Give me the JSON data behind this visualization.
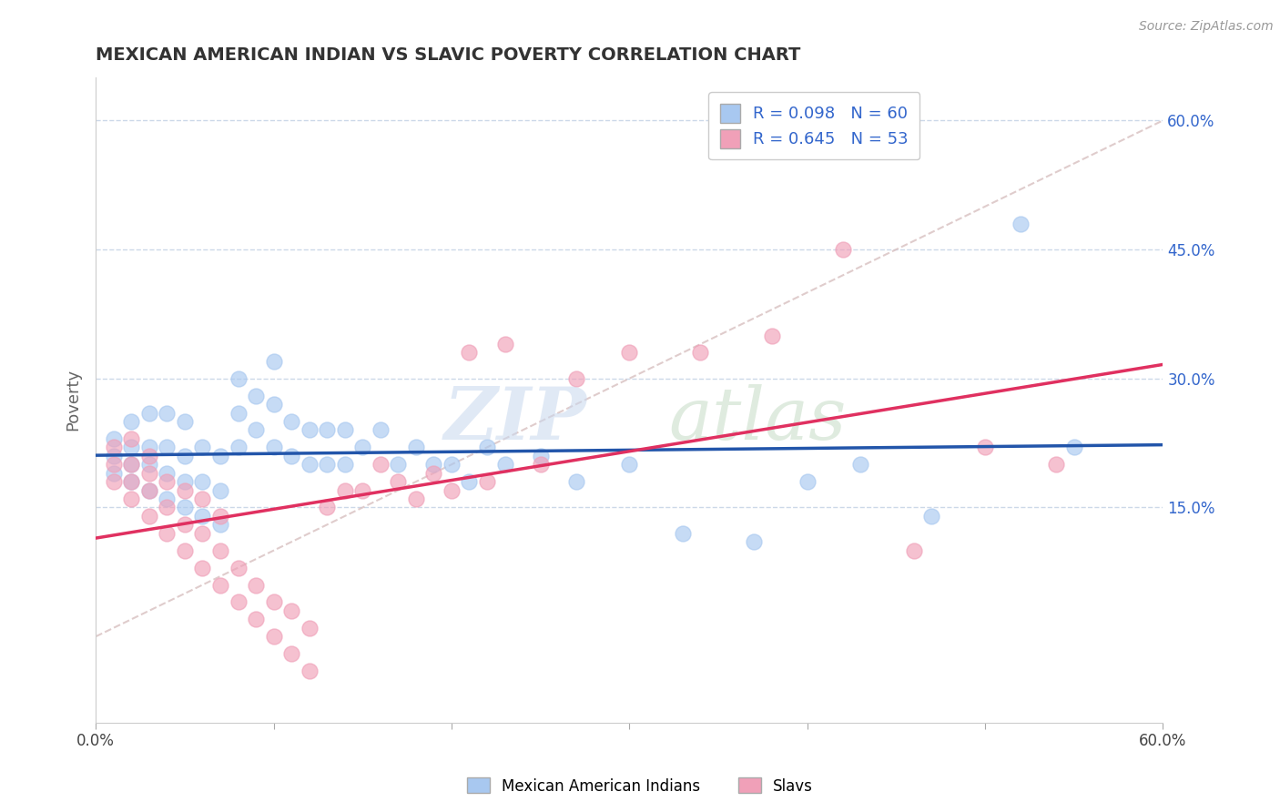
{
  "title": "MEXICAN AMERICAN INDIAN VS SLAVIC POVERTY CORRELATION CHART",
  "source": "Source: ZipAtlas.com",
  "ylabel": "Poverty",
  "xlim": [
    0.0,
    0.6
  ],
  "ylim": [
    -0.1,
    0.65
  ],
  "legend1_label": "R = 0.098   N = 60",
  "legend2_label": "R = 0.645   N = 53",
  "series1_color": "#a8c8f0",
  "series2_color": "#f0a0b8",
  "series1_line_color": "#2255aa",
  "series2_line_color": "#e03060",
  "series1_name": "Mexican American Indians",
  "series2_name": "Slavs",
  "diag_line_color": "#d8c0c0",
  "background_color": "#ffffff",
  "grid_color": "#ccd8e8",
  "scatter1_x": [
    0.01,
    0.01,
    0.01,
    0.02,
    0.02,
    0.02,
    0.02,
    0.03,
    0.03,
    0.03,
    0.03,
    0.04,
    0.04,
    0.04,
    0.04,
    0.05,
    0.05,
    0.05,
    0.05,
    0.06,
    0.06,
    0.06,
    0.07,
    0.07,
    0.07,
    0.08,
    0.08,
    0.08,
    0.09,
    0.09,
    0.1,
    0.1,
    0.1,
    0.11,
    0.11,
    0.12,
    0.12,
    0.13,
    0.13,
    0.14,
    0.14,
    0.15,
    0.16,
    0.17,
    0.18,
    0.19,
    0.2,
    0.21,
    0.22,
    0.23,
    0.25,
    0.27,
    0.3,
    0.33,
    0.37,
    0.4,
    0.43,
    0.47,
    0.52,
    0.55
  ],
  "scatter1_y": [
    0.19,
    0.21,
    0.23,
    0.18,
    0.2,
    0.22,
    0.25,
    0.17,
    0.2,
    0.22,
    0.26,
    0.16,
    0.19,
    0.22,
    0.26,
    0.15,
    0.18,
    0.21,
    0.25,
    0.14,
    0.18,
    0.22,
    0.13,
    0.17,
    0.21,
    0.22,
    0.26,
    0.3,
    0.24,
    0.28,
    0.22,
    0.27,
    0.32,
    0.21,
    0.25,
    0.2,
    0.24,
    0.2,
    0.24,
    0.2,
    0.24,
    0.22,
    0.24,
    0.2,
    0.22,
    0.2,
    0.2,
    0.18,
    0.22,
    0.2,
    0.21,
    0.18,
    0.2,
    0.12,
    0.11,
    0.18,
    0.2,
    0.14,
    0.48,
    0.22
  ],
  "scatter2_x": [
    0.01,
    0.01,
    0.01,
    0.02,
    0.02,
    0.02,
    0.02,
    0.03,
    0.03,
    0.03,
    0.03,
    0.04,
    0.04,
    0.04,
    0.05,
    0.05,
    0.05,
    0.06,
    0.06,
    0.06,
    0.07,
    0.07,
    0.07,
    0.08,
    0.08,
    0.09,
    0.09,
    0.1,
    0.1,
    0.11,
    0.11,
    0.12,
    0.12,
    0.13,
    0.14,
    0.15,
    0.16,
    0.17,
    0.18,
    0.19,
    0.2,
    0.21,
    0.22,
    0.23,
    0.25,
    0.27,
    0.3,
    0.34,
    0.38,
    0.42,
    0.46,
    0.5,
    0.54
  ],
  "scatter2_y": [
    0.18,
    0.2,
    0.22,
    0.16,
    0.18,
    0.2,
    0.23,
    0.14,
    0.17,
    0.19,
    0.21,
    0.12,
    0.15,
    0.18,
    0.1,
    0.13,
    0.17,
    0.08,
    0.12,
    0.16,
    0.06,
    0.1,
    0.14,
    0.04,
    0.08,
    0.02,
    0.06,
    0.0,
    0.04,
    -0.02,
    0.03,
    -0.04,
    0.01,
    0.15,
    0.17,
    0.17,
    0.2,
    0.18,
    0.16,
    0.19,
    0.17,
    0.33,
    0.18,
    0.34,
    0.2,
    0.3,
    0.33,
    0.33,
    0.35,
    0.45,
    0.1,
    0.22,
    0.2
  ],
  "y_tick_vals": [
    0.15,
    0.3,
    0.45,
    0.6
  ],
  "y_tick_labels": [
    "15.0%",
    "30.0%",
    "45.0%",
    "60.0%"
  ]
}
